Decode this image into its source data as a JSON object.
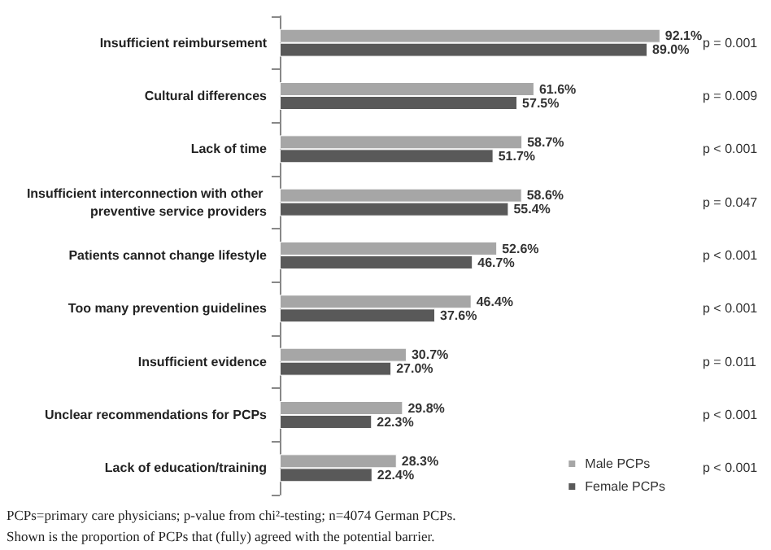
{
  "chart_data": {
    "type": "bar",
    "orientation": "horizontal",
    "categories": [
      "Insufficient reimbursement",
      "Cultural differences",
      "Lack of time",
      "Insufficient interconnection with other preventive service providers",
      "Patients cannot change lifestyle",
      "Too many prevention guidelines",
      "Insufficient evidence",
      "Unclear recommendations for PCPs",
      "Lack of education/training"
    ],
    "series": [
      {
        "name": "Male PCPs",
        "color": "#a6a6a6",
        "values": [
          92.1,
          61.6,
          58.7,
          58.6,
          52.6,
          46.4,
          30.7,
          29.8,
          28.3
        ],
        "value_labels": [
          "92.1%",
          "61.6%",
          "58.7%",
          "58.6%",
          "52.6%",
          "46.4%",
          "30.7%",
          "29.8%",
          "28.3%"
        ]
      },
      {
        "name": "Female PCPs",
        "color": "#595959",
        "values": [
          89.0,
          57.5,
          51.7,
          55.4,
          46.7,
          37.6,
          27.0,
          22.3,
          22.4
        ],
        "value_labels": [
          "89.0%",
          "57.5%",
          "51.7%",
          "55.4%",
          "46.7%",
          "37.6%",
          "27.0%",
          "22.3%",
          "22.4%"
        ]
      }
    ],
    "tick_labels": "y",
    "legend": "bottom right",
    "annotations": [
      "p = 0.001",
      "p = 0.009",
      "p < 0.001",
      "p = 0.047",
      "p < 0.001",
      "p < 0.001",
      "p = 0.011",
      "p < 0.001",
      "p < 0.001",
      "PCPs=primary care physicians; p-value from chi²-testing; n=4074 German PCPs.",
      "Shown is the proportion of PCPs that (fully) agreed with the potential barrier."
    ]
  }
}
